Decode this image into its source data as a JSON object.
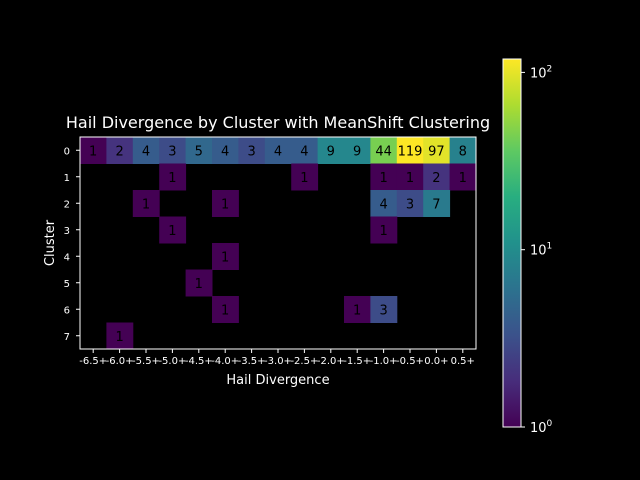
{
  "chart_data": {
    "type": "heatmap",
    "title": "Hail Divergence by Cluster with MeanShift Clustering",
    "xlabel": "Hail Divergence",
    "ylabel": "Cluster",
    "x_categories": [
      "-6.5+",
      "-6.0+",
      "-5.5+",
      "-5.0+",
      "-4.5+",
      "-4.0+",
      "-3.5+",
      "-3.0+",
      "-2.5+",
      "-2.0+",
      "-1.5+",
      "-1.0+",
      "-0.5+",
      "0.0+",
      "0.5+"
    ],
    "y_categories": [
      "0",
      "1",
      "2",
      "3",
      "4",
      "5",
      "6",
      "7"
    ],
    "values": [
      [
        1,
        2,
        4,
        3,
        5,
        4,
        3,
        4,
        4,
        9,
        9,
        44,
        119,
        97,
        8
      ],
      [
        null,
        null,
        null,
        1,
        null,
        null,
        null,
        null,
        1,
        null,
        null,
        1,
        1,
        2,
        1
      ],
      [
        null,
        null,
        1,
        null,
        null,
        1,
        null,
        null,
        null,
        null,
        null,
        4,
        3,
        7,
        null
      ],
      [
        null,
        null,
        null,
        1,
        null,
        null,
        null,
        null,
        null,
        null,
        null,
        1,
        null,
        null,
        null
      ],
      [
        null,
        null,
        null,
        null,
        null,
        1,
        null,
        null,
        null,
        null,
        null,
        null,
        null,
        null,
        null
      ],
      [
        null,
        null,
        null,
        null,
        1,
        null,
        null,
        null,
        null,
        null,
        null,
        null,
        null,
        null,
        null
      ],
      [
        null,
        null,
        null,
        null,
        null,
        1,
        null,
        null,
        null,
        null,
        1,
        3,
        null,
        null,
        null
      ],
      [
        null,
        1,
        null,
        null,
        null,
        null,
        null,
        null,
        null,
        null,
        null,
        null,
        null,
        null,
        null
      ]
    ],
    "colorbar": {
      "scale": "log",
      "colormap": "viridis",
      "range": [
        1,
        119
      ],
      "tick_values": [
        1,
        10,
        100
      ],
      "tick_labels": [
        "10^0",
        "10^1",
        "10^2"
      ]
    },
    "grid": false,
    "background": "#000000",
    "text_color": "#ffffff",
    "cell_text_color": "#000000"
  }
}
